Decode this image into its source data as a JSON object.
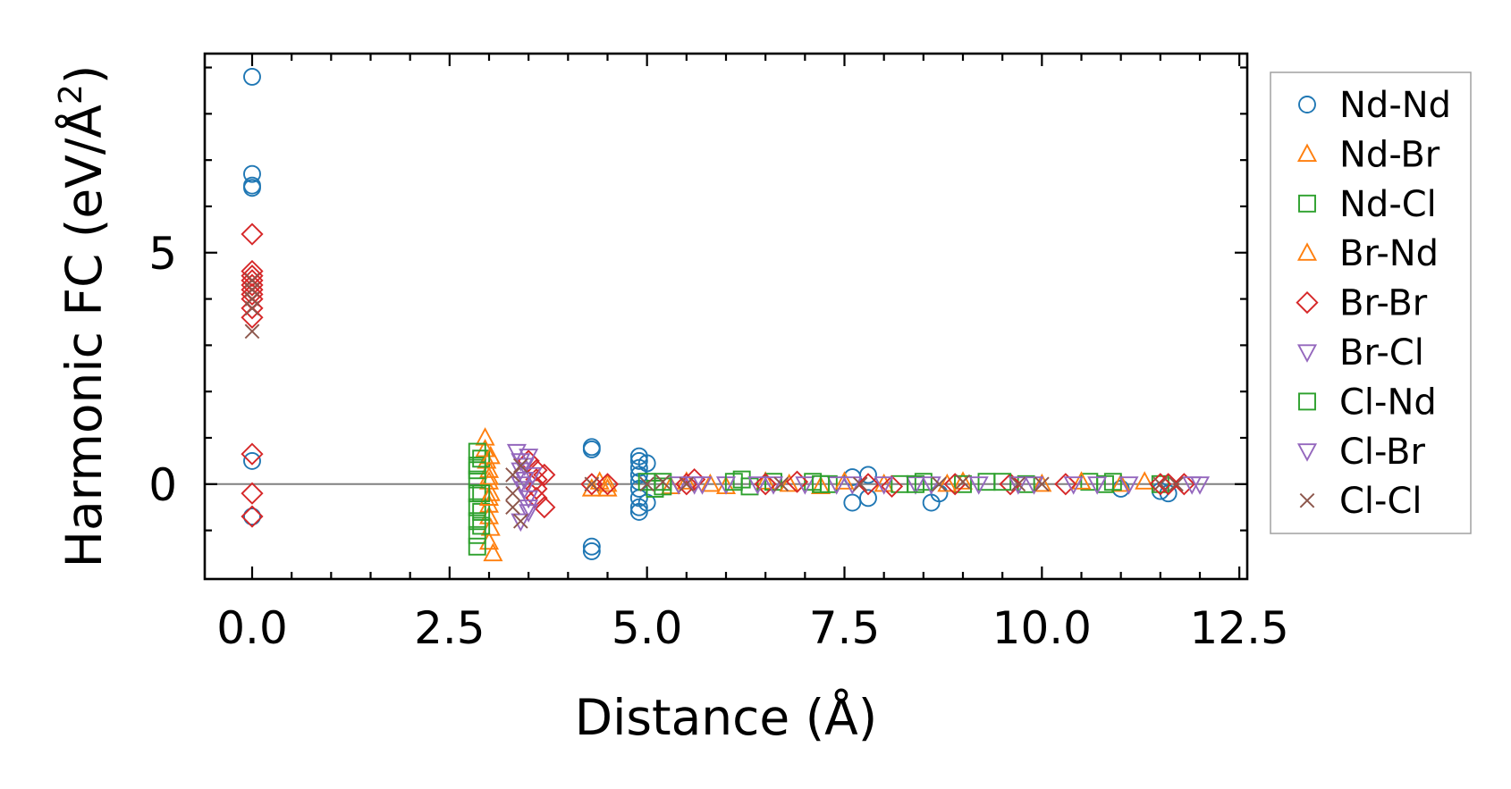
{
  "chart_data": {
    "type": "scatter",
    "title": "",
    "xlabel": "Distance (Å)",
    "ylabel_main": "Harmonic FC (eV/Å",
    "ylabel_sup": "2",
    "ylabel_tail": ")",
    "xlim": [
      -0.6,
      12.6
    ],
    "ylim": [
      -2.05,
      9.3
    ],
    "xticks": [
      0.0,
      2.5,
      5.0,
      7.5,
      10.0,
      12.5
    ],
    "xtick_labels": [
      "0.0",
      "2.5",
      "5.0",
      "7.5",
      "10.0",
      "12.5"
    ],
    "yticks": [
      0,
      5
    ],
    "ytick_labels": [
      "0",
      "5"
    ],
    "zero_line": true,
    "legend_position": "outside-right",
    "series": [
      {
        "name": "Nd-Nd",
        "marker": "circle",
        "color": "#1f77b4",
        "points": [
          [
            0,
            8.8
          ],
          [
            0,
            6.7
          ],
          [
            0,
            6.45
          ],
          [
            0,
            6.4
          ],
          [
            0,
            0.5
          ],
          [
            0,
            -0.7
          ],
          [
            4.3,
            0.8
          ],
          [
            4.3,
            0.75
          ],
          [
            4.3,
            -1.35
          ],
          [
            4.3,
            -1.45
          ],
          [
            4.9,
            0.6
          ],
          [
            4.9,
            0.5
          ],
          [
            4.9,
            0.35
          ],
          [
            4.9,
            0.2
          ],
          [
            4.9,
            0.05
          ],
          [
            4.9,
            -0.1
          ],
          [
            4.9,
            -0.3
          ],
          [
            4.9,
            -0.5
          ],
          [
            4.9,
            -0.6
          ],
          [
            5.0,
            0.45
          ],
          [
            5.0,
            -0.4
          ],
          [
            7.6,
            -0.4
          ],
          [
            7.6,
            0.15
          ],
          [
            7.8,
            -0.3
          ],
          [
            7.8,
            0.2
          ],
          [
            8.6,
            -0.4
          ],
          [
            8.7,
            -0.2
          ],
          [
            11.0,
            -0.1
          ],
          [
            11.5,
            -0.15
          ],
          [
            11.6,
            -0.2
          ]
        ]
      },
      {
        "name": "Nd-Br",
        "marker": "triangle-up",
        "color": "#ff7f0e",
        "points": [
          [
            2.95,
            1.0
          ],
          [
            2.95,
            0.75
          ],
          [
            2.97,
            0.5
          ],
          [
            3.0,
            0.3
          ],
          [
            3.0,
            0.05
          ],
          [
            3.02,
            -0.2
          ],
          [
            3.0,
            -0.45
          ],
          [
            3.0,
            -0.7
          ],
          [
            3.02,
            -0.95
          ],
          [
            3.0,
            -1.25
          ],
          [
            3.05,
            -1.5
          ],
          [
            4.3,
            -0.1
          ],
          [
            4.4,
            0.05
          ],
          [
            4.5,
            -0.1
          ],
          [
            5.3,
            -0.05
          ],
          [
            5.8,
            0.0
          ],
          [
            6.5,
            0.05
          ],
          [
            7.2,
            -0.05
          ],
          [
            8.0,
            0.0
          ],
          [
            9.0,
            0.05
          ],
          [
            10.0,
            0.0
          ],
          [
            11.0,
            0.0
          ],
          [
            11.3,
            0.05
          ]
        ]
      },
      {
        "name": "Nd-Cl",
        "marker": "square",
        "color": "#2ca02c",
        "points": [
          [
            2.85,
            0.7
          ],
          [
            2.85,
            0.4
          ],
          [
            2.85,
            0.1
          ],
          [
            2.85,
            -0.2
          ],
          [
            2.85,
            -0.5
          ],
          [
            2.85,
            -0.8
          ],
          [
            2.85,
            -1.1
          ],
          [
            2.85,
            -1.35
          ],
          [
            2.9,
            0.55
          ],
          [
            2.9,
            -0.6
          ],
          [
            5.0,
            0.05
          ],
          [
            5.1,
            -0.1
          ],
          [
            5.2,
            0.05
          ],
          [
            6.2,
            0.1
          ],
          [
            6.3,
            -0.05
          ],
          [
            6.6,
            0.05
          ],
          [
            7.1,
            0.05
          ],
          [
            7.3,
            0.0
          ],
          [
            8.2,
            0.0
          ],
          [
            8.5,
            0.05
          ],
          [
            9.0,
            0.0
          ],
          [
            9.3,
            0.05
          ],
          [
            9.8,
            0.0
          ],
          [
            10.6,
            0.05
          ],
          [
            10.9,
            0.05
          ],
          [
            11.5,
            0.0
          ]
        ]
      },
      {
        "name": "Br-Nd",
        "marker": "triangle-up",
        "color": "#ff7f0e",
        "points": [
          [
            3.0,
            0.15
          ],
          [
            3.0,
            -0.3
          ],
          [
            3.02,
            0.6
          ],
          [
            4.5,
            0.0
          ],
          [
            5.5,
            0.05
          ],
          [
            6.0,
            -0.05
          ],
          [
            6.8,
            0.0
          ],
          [
            7.5,
            0.05
          ],
          [
            8.8,
            0.0
          ],
          [
            10.5,
            0.05
          ]
        ]
      },
      {
        "name": "Br-Br",
        "marker": "diamond",
        "color": "#d62728",
        "points": [
          [
            0,
            5.4
          ],
          [
            0,
            4.6
          ],
          [
            0,
            4.5
          ],
          [
            0,
            4.4
          ],
          [
            0,
            4.3
          ],
          [
            0,
            4.2
          ],
          [
            0,
            4.1
          ],
          [
            0,
            4.0
          ],
          [
            0,
            3.8
          ],
          [
            0,
            3.6
          ],
          [
            0,
            0.65
          ],
          [
            0,
            -0.2
          ],
          [
            0,
            -0.7
          ],
          [
            3.5,
            0.5
          ],
          [
            3.6,
            0.3
          ],
          [
            3.6,
            0.1
          ],
          [
            3.6,
            -0.1
          ],
          [
            3.6,
            -0.3
          ],
          [
            3.7,
            -0.5
          ],
          [
            3.7,
            0.2
          ],
          [
            4.3,
            0.0
          ],
          [
            4.5,
            0.0
          ],
          [
            5.5,
            0.0
          ],
          [
            5.6,
            0.1
          ],
          [
            6.5,
            0.0
          ],
          [
            6.9,
            0.05
          ],
          [
            7.8,
            0.0
          ],
          [
            8.1,
            -0.05
          ],
          [
            8.9,
            0.0
          ],
          [
            9.6,
            0.0
          ],
          [
            10.3,
            0.0
          ],
          [
            11.5,
            0.0
          ],
          [
            11.6,
            0.0
          ],
          [
            11.8,
            0.0
          ]
        ]
      },
      {
        "name": "Br-Cl",
        "marker": "triangle-down",
        "color": "#9467bd",
        "points": [
          [
            3.35,
            0.7
          ],
          [
            3.4,
            0.5
          ],
          [
            3.4,
            0.3
          ],
          [
            3.45,
            0.1
          ],
          [
            3.45,
            -0.1
          ],
          [
            3.5,
            -0.3
          ],
          [
            3.5,
            -0.5
          ],
          [
            3.4,
            -0.8
          ],
          [
            3.5,
            0.6
          ],
          [
            3.55,
            0.2
          ],
          [
            5.4,
            0.0
          ],
          [
            5.7,
            0.0
          ],
          [
            6.0,
            0.0
          ],
          [
            6.4,
            0.0
          ],
          [
            7.0,
            0.0
          ],
          [
            7.4,
            0.0
          ],
          [
            8.0,
            0.0
          ],
          [
            8.4,
            0.0
          ],
          [
            9.2,
            0.0
          ],
          [
            9.9,
            0.0
          ],
          [
            10.4,
            0.0
          ],
          [
            11.1,
            0.0
          ],
          [
            11.9,
            0.0
          ]
        ]
      },
      {
        "name": "Cl-Nd",
        "marker": "square",
        "color": "#2ca02c",
        "points": [
          [
            2.85,
            0.3
          ],
          [
            2.9,
            -0.2
          ],
          [
            2.9,
            -0.9
          ],
          [
            5.2,
            -0.05
          ],
          [
            6.1,
            0.05
          ],
          [
            7.2,
            0.0
          ],
          [
            8.4,
            0.0
          ],
          [
            9.5,
            0.05
          ],
          [
            10.8,
            0.0
          ]
        ]
      },
      {
        "name": "Cl-Br",
        "marker": "triangle-down",
        "color": "#9467bd",
        "points": [
          [
            3.4,
            0.0
          ],
          [
            3.45,
            0.4
          ],
          [
            3.5,
            -0.6
          ],
          [
            5.6,
            0.0
          ],
          [
            6.6,
            0.0
          ],
          [
            7.6,
            0.0
          ],
          [
            8.6,
            0.0
          ],
          [
            9.7,
            0.0
          ],
          [
            10.7,
            0.0
          ],
          [
            12.0,
            0.0
          ]
        ]
      },
      {
        "name": "Cl-Cl",
        "marker": "x",
        "color": "#8c564b",
        "points": [
          [
            0,
            4.4
          ],
          [
            0,
            4.2
          ],
          [
            0,
            4.0
          ],
          [
            0,
            3.8
          ],
          [
            0,
            3.3
          ],
          [
            3.3,
            0.2
          ],
          [
            3.3,
            -0.2
          ],
          [
            3.3,
            -0.5
          ],
          [
            3.4,
            0.4
          ],
          [
            3.4,
            -0.8
          ],
          [
            4.3,
            0.0
          ],
          [
            5.0,
            0.0
          ],
          [
            5.2,
            0.05
          ],
          [
            5.5,
            0.0
          ],
          [
            6.7,
            0.0
          ],
          [
            7.7,
            0.0
          ],
          [
            8.7,
            0.0
          ],
          [
            9.0,
            0.05
          ],
          [
            9.7,
            0.0
          ],
          [
            10.0,
            0.0
          ],
          [
            11.5,
            0.0
          ],
          [
            11.7,
            0.0
          ]
        ]
      }
    ]
  }
}
